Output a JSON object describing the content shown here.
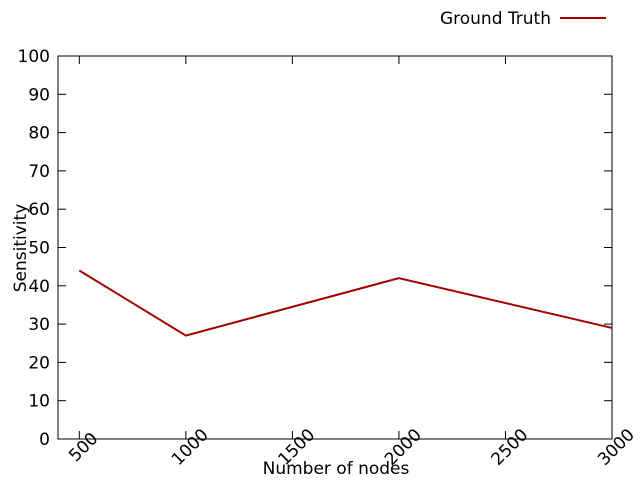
{
  "chart_data": {
    "type": "line",
    "xlabel": "Number of nodes",
    "ylabel": "Sensitivity",
    "xlim": [
      400,
      3000
    ],
    "ylim": [
      0,
      100
    ],
    "x_ticks": [
      500,
      1000,
      1500,
      2000,
      2500,
      3000
    ],
    "y_ticks": [
      0,
      10,
      20,
      30,
      40,
      50,
      60,
      70,
      80,
      90,
      100
    ],
    "grid": false,
    "legend_position": "top-right, outside plot",
    "series": [
      {
        "name": "Ground Truth",
        "color": "#a00000",
        "x": [
          500,
          1000,
          2000,
          3000
        ],
        "y": [
          44,
          27,
          42,
          29
        ]
      }
    ]
  }
}
